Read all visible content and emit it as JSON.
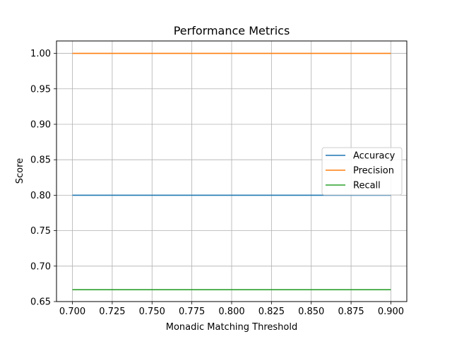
{
  "chart_data": {
    "type": "line",
    "title": "Performance Metrics",
    "xlabel": "Monadic Matching Threshold",
    "ylabel": "Score",
    "x": [
      0.7,
      0.9
    ],
    "xlim": [
      0.69,
      0.91
    ],
    "ylim": [
      0.65,
      1.0175
    ],
    "xticks": [
      0.7,
      0.725,
      0.75,
      0.775,
      0.8,
      0.825,
      0.85,
      0.875,
      0.9
    ],
    "xtick_labels": [
      "0.700",
      "0.725",
      "0.750",
      "0.775",
      "0.800",
      "0.825",
      "0.850",
      "0.875",
      "0.900"
    ],
    "yticks": [
      0.65,
      0.7,
      0.75,
      0.8,
      0.85,
      0.9,
      0.95,
      1.0
    ],
    "ytick_labels": [
      "0.65",
      "0.70",
      "0.75",
      "0.80",
      "0.85",
      "0.90",
      "0.95",
      "1.00"
    ],
    "grid": true,
    "legend_position": "center-right",
    "series": [
      {
        "name": "Accuracy",
        "color": "#1f77b4",
        "values": [
          0.8,
          0.8
        ]
      },
      {
        "name": "Precision",
        "color": "#ff7f0e",
        "values": [
          1.0,
          1.0
        ]
      },
      {
        "name": "Recall",
        "color": "#2ca02c",
        "values": [
          0.6667,
          0.6667
        ]
      }
    ]
  }
}
